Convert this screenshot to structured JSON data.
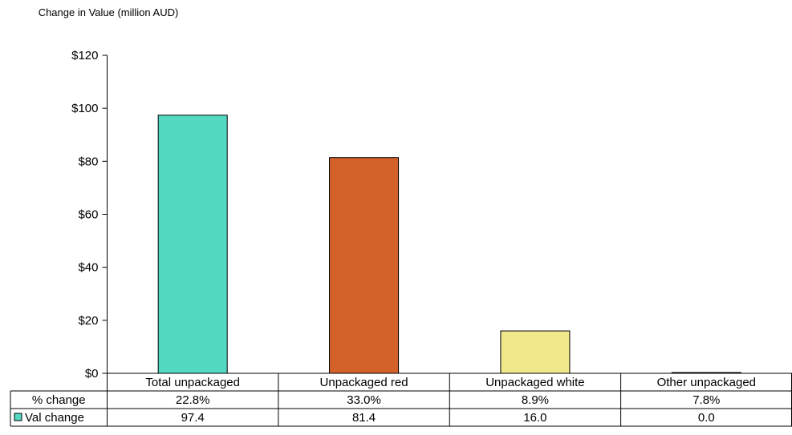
{
  "chart_data": {
    "type": "bar",
    "ylabel": "Change in Value (million AUD)",
    "ylim": [
      0,
      120
    ],
    "ytick_step": 20,
    "ytick_prefix": "$",
    "categories": [
      "Total unpackaged",
      "Unpackaged red",
      "Unpackaged white",
      "Other unpackaged"
    ],
    "series": [
      {
        "name": "Val change",
        "values": [
          97.4,
          81.4,
          16.0,
          0.0
        ]
      }
    ],
    "bar_colors": [
      "#55d8c2",
      "#d2622a",
      "#f0e88a",
      "#55d8c2"
    ],
    "legend_color": "#55d8c2",
    "table": {
      "rows": [
        {
          "label": "% change",
          "values": [
            "22.8%",
            "33.0%",
            "8.9%",
            "7.8%"
          ]
        },
        {
          "label": "Val change",
          "values": [
            "97.4",
            "81.4",
            "16.0",
            "0.0"
          ]
        }
      ]
    },
    "grid": false
  }
}
